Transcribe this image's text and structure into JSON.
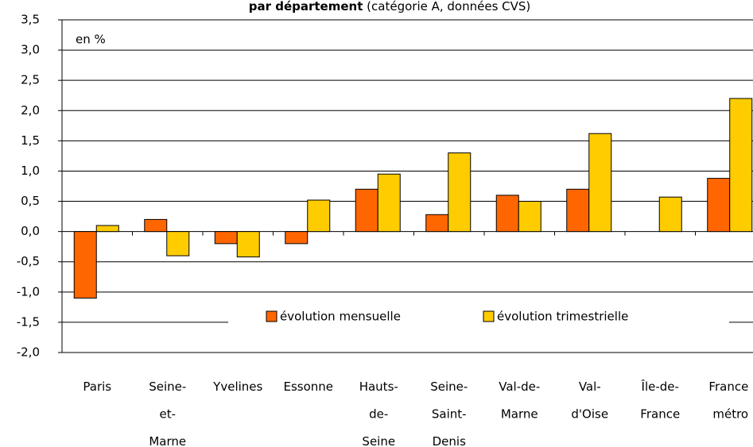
{
  "chart_data": {
    "type": "bar",
    "title": "par département",
    "subtitle": "(catégorie A, données CVS)",
    "annotation": "en %",
    "categories": [
      "Paris",
      "Seine-et-Marne",
      "Yvelines",
      "Essonne",
      "Hauts-de-Seine",
      "Seine-Saint-Denis",
      "Val-de-Marne",
      "Val-d'Oise",
      "Île-de-France",
      "France métro"
    ],
    "series": [
      {
        "name": "évolution mensuelle",
        "color": "#ff6600",
        "values": [
          -1.1,
          0.2,
          -0.2,
          -0.2,
          0.7,
          0.28,
          0.6,
          0.7,
          0,
          0.88
        ]
      },
      {
        "name": "évolution trimestrielle",
        "color": "#ffcc00",
        "values": [
          0.1,
          -0.4,
          -0.42,
          0.52,
          0.95,
          1.3,
          0.5,
          1.62,
          0.57,
          2.2
        ]
      }
    ],
    "ylim": [
      -2,
      3.5
    ],
    "yticks": [
      {
        "value": -2,
        "label": "-2,0"
      },
      {
        "value": -1.5,
        "label": "-1,5"
      },
      {
        "value": -1,
        "label": "-1,0"
      },
      {
        "value": -0.5,
        "label": "-0,5"
      },
      {
        "value": 0,
        "label": "0,0"
      },
      {
        "value": 0.5,
        "label": "0,5"
      },
      {
        "value": 1,
        "label": "1,0"
      },
      {
        "value": 1.5,
        "label": "1,5"
      },
      {
        "value": 2,
        "label": "2,0"
      },
      {
        "value": 2.5,
        "label": "2,5"
      },
      {
        "value": 3,
        "label": "3,0"
      },
      {
        "value": 3.5,
        "label": "3,5"
      }
    ],
    "grid": true
  }
}
